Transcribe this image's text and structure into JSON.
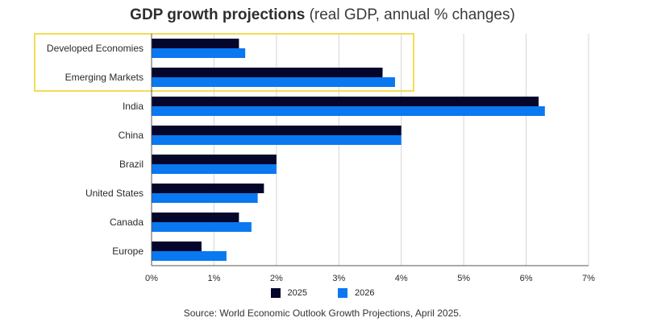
{
  "header": {
    "title_bold": "GDP growth projections",
    "title_regular": "(real GDP, annual % changes)"
  },
  "colors": {
    "series_2025": "#05062b",
    "series_2026": "#0a78f0",
    "highlight": "#f2dc55",
    "grid": "#d4d4d4"
  },
  "chart_data": {
    "type": "bar",
    "orientation": "horizontal",
    "title": "GDP growth projections (real GDP, annual % changes)",
    "xlabel": "",
    "ylabel": "",
    "categories": [
      "Developed Economies",
      "Emerging Markets",
      "India",
      "China",
      "Brazil",
      "United States",
      "Canada",
      "Europe"
    ],
    "series": [
      {
        "name": "2025",
        "values": [
          1.4,
          3.7,
          6.2,
          4.0,
          2.0,
          1.8,
          1.4,
          0.8
        ]
      },
      {
        "name": "2026",
        "values": [
          1.5,
          3.9,
          6.3,
          4.0,
          2.0,
          1.7,
          1.6,
          1.2
        ]
      }
    ],
    "xlim": [
      0,
      7
    ],
    "x_ticks": [
      0,
      1,
      2,
      3,
      4,
      5,
      6,
      7
    ],
    "x_tick_labels": [
      "0%",
      "1%",
      "2%",
      "3%",
      "4%",
      "5%",
      "6%",
      "7%"
    ],
    "grid": true,
    "legend_position": "bottom-center",
    "highlighted_categories": [
      "Developed Economies",
      "Emerging Markets"
    ]
  },
  "legend": {
    "label_2025": "2025",
    "label_2026": "2026"
  },
  "footer": {
    "source": "Source: World Economic Outlook Growth Projections, April 2025."
  }
}
